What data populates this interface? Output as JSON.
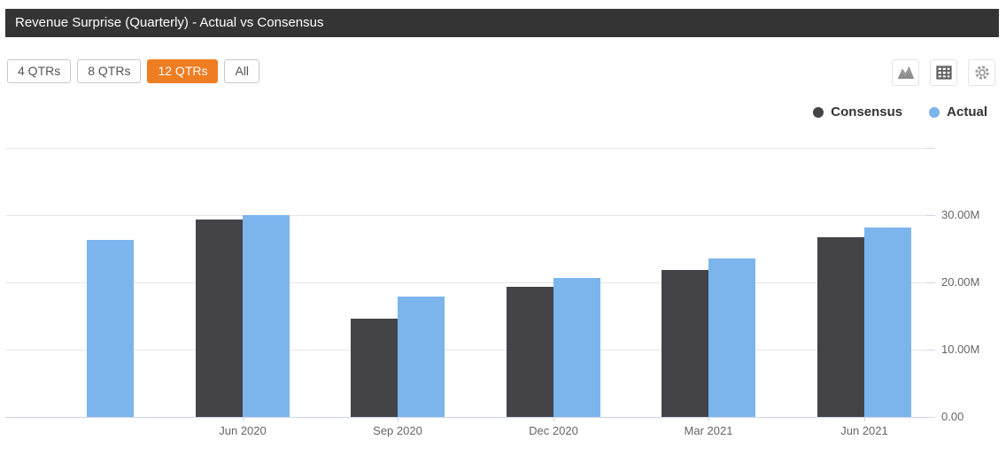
{
  "window": {
    "title": "Revenue Surprise (Quarterly) - Actual vs Consensus"
  },
  "toolbar": {
    "range_buttons": [
      {
        "label": "4 QTRs",
        "active": false
      },
      {
        "label": "8 QTRs",
        "active": false
      },
      {
        "label": "12 QTRs",
        "active": true
      },
      {
        "label": "All",
        "active": false
      }
    ],
    "icons": [
      {
        "name": "area-chart-icon"
      },
      {
        "name": "table-view-icon"
      },
      {
        "name": "settings-gear-icon"
      }
    ]
  },
  "colors": {
    "header_bg": "#343434",
    "accent_orange": "#ef7d22",
    "consensus": "#434348",
    "actual": "#7cb5ec",
    "gridline": "#e6e6e6",
    "axis_line": "#ccd6eb",
    "axis_text": "#666666",
    "legend_text": "#333333"
  },
  "chart_data": {
    "type": "bar",
    "title": "Revenue Surprise (Quarterly) - Actual vs Consensus",
    "categories": [
      "",
      "Jun 2020",
      "Sep 2020",
      "Dec 2020",
      "Mar 2021",
      "Jun 2021"
    ],
    "series": [
      {
        "name": "Consensus",
        "color": "#434348",
        "values": [
          null,
          29.4,
          14.6,
          19.4,
          21.8,
          26.7
        ]
      },
      {
        "name": "Actual",
        "color": "#7cb5ec",
        "values": [
          26.3,
          30.0,
          17.9,
          20.7,
          23.5,
          28.1
        ]
      }
    ],
    "value_unit": "millions",
    "y_axis": {
      "range": [
        0,
        40
      ],
      "ticks": [
        {
          "value": 40,
          "label": ""
        },
        {
          "value": 30,
          "label": "30.00M"
        },
        {
          "value": 20,
          "label": "20.00M"
        },
        {
          "value": 10,
          "label": "10.00M"
        },
        {
          "value": 0,
          "label": "0.00"
        }
      ],
      "side": "right"
    },
    "legend": {
      "position": "top-right",
      "items": [
        "Consensus",
        "Actual"
      ]
    },
    "grid": true,
    "note_first_category_partial": "leftmost group shows Actual bar only, no axis label"
  }
}
